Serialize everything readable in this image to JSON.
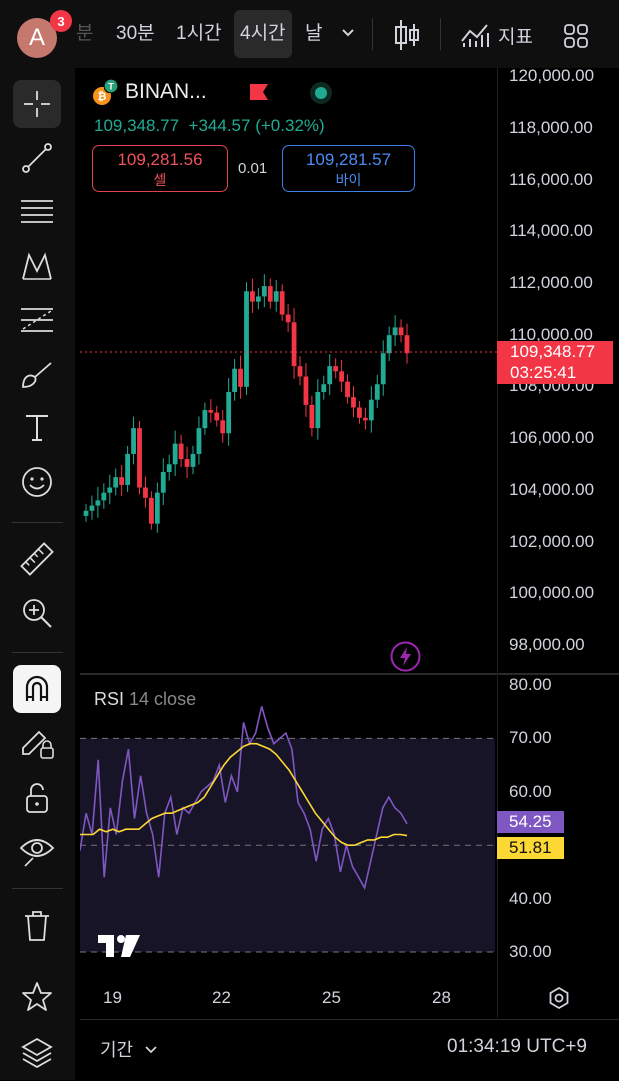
{
  "toolbar": {
    "avatar_letter": "A",
    "notifications": "3",
    "timeframes": [
      "분",
      "30분",
      "1시간",
      "4시간",
      "날"
    ],
    "active_timeframe": "4시간",
    "indicators_label": "지표"
  },
  "sidebar": {
    "tools": [
      "crosshair",
      "trend-line",
      "fib-retracement",
      "pattern",
      "prediction",
      "brush",
      "text",
      "emoji",
      "measure",
      "zoom-in",
      "magnet",
      "lock-drawings",
      "unlock",
      "eye",
      "trash",
      "watchlist",
      "layers"
    ]
  },
  "chart": {
    "symbol": "BINAN...",
    "last": "109,348.77",
    "change": "+344.57",
    "change_pct": "(+0.32%)",
    "sell_price": "109,281.56",
    "sell_label": "셀",
    "spread": "0.01",
    "buy_price": "109,281.57",
    "buy_label": "바이",
    "current_price_label": "109,348.77",
    "countdown": "03:25:41",
    "price_axis": [
      "120,000.00",
      "118,000.00",
      "116,000.00",
      "114,000.00",
      "112,000.00",
      "110,000.00",
      "108,000.00",
      "106,000.00",
      "104,000.00",
      "102,000.00",
      "100,000.00",
      "98,000.00"
    ],
    "up_color": "#22ab94",
    "down_color": "#f23645"
  },
  "rsi": {
    "title": "RSI",
    "params": "14 close",
    "axis": [
      "80.00",
      "70.00",
      "60.00",
      "50.00",
      "40.00",
      "30.00"
    ],
    "rsi_value": "54.25",
    "ma_value": "51.81",
    "rsi_color": "#7e57c2",
    "ma_color": "#fdd835"
  },
  "xaxis": [
    "19",
    "22",
    "25",
    "28"
  ],
  "footer": {
    "period_label": "기간",
    "time": "01:34:19 UTC+9"
  },
  "chart_data": {
    "type": "candlestick",
    "series": [
      {
        "name": "BINAN...",
        "values": [
          103200,
          103400,
          103600,
          103900,
          104100,
          104500,
          104200,
          105400,
          106400,
          104100,
          103700,
          102700,
          103900,
          104700,
          105000,
          105800,
          105200,
          104900,
          105400,
          106400,
          107100,
          107000,
          106700,
          106200,
          107800,
          108700,
          108000,
          111700,
          111300,
          111500,
          111900,
          111300,
          111700,
          110800,
          110500,
          108800,
          108400,
          107300,
          106400,
          107800,
          108100,
          108800,
          108600,
          108200,
          107600,
          107200,
          106800,
          106700,
          107500,
          108100,
          109300,
          110000,
          110300,
          110000,
          109300
        ]
      }
    ],
    "ylim": [
      97000,
      121000
    ]
  }
}
